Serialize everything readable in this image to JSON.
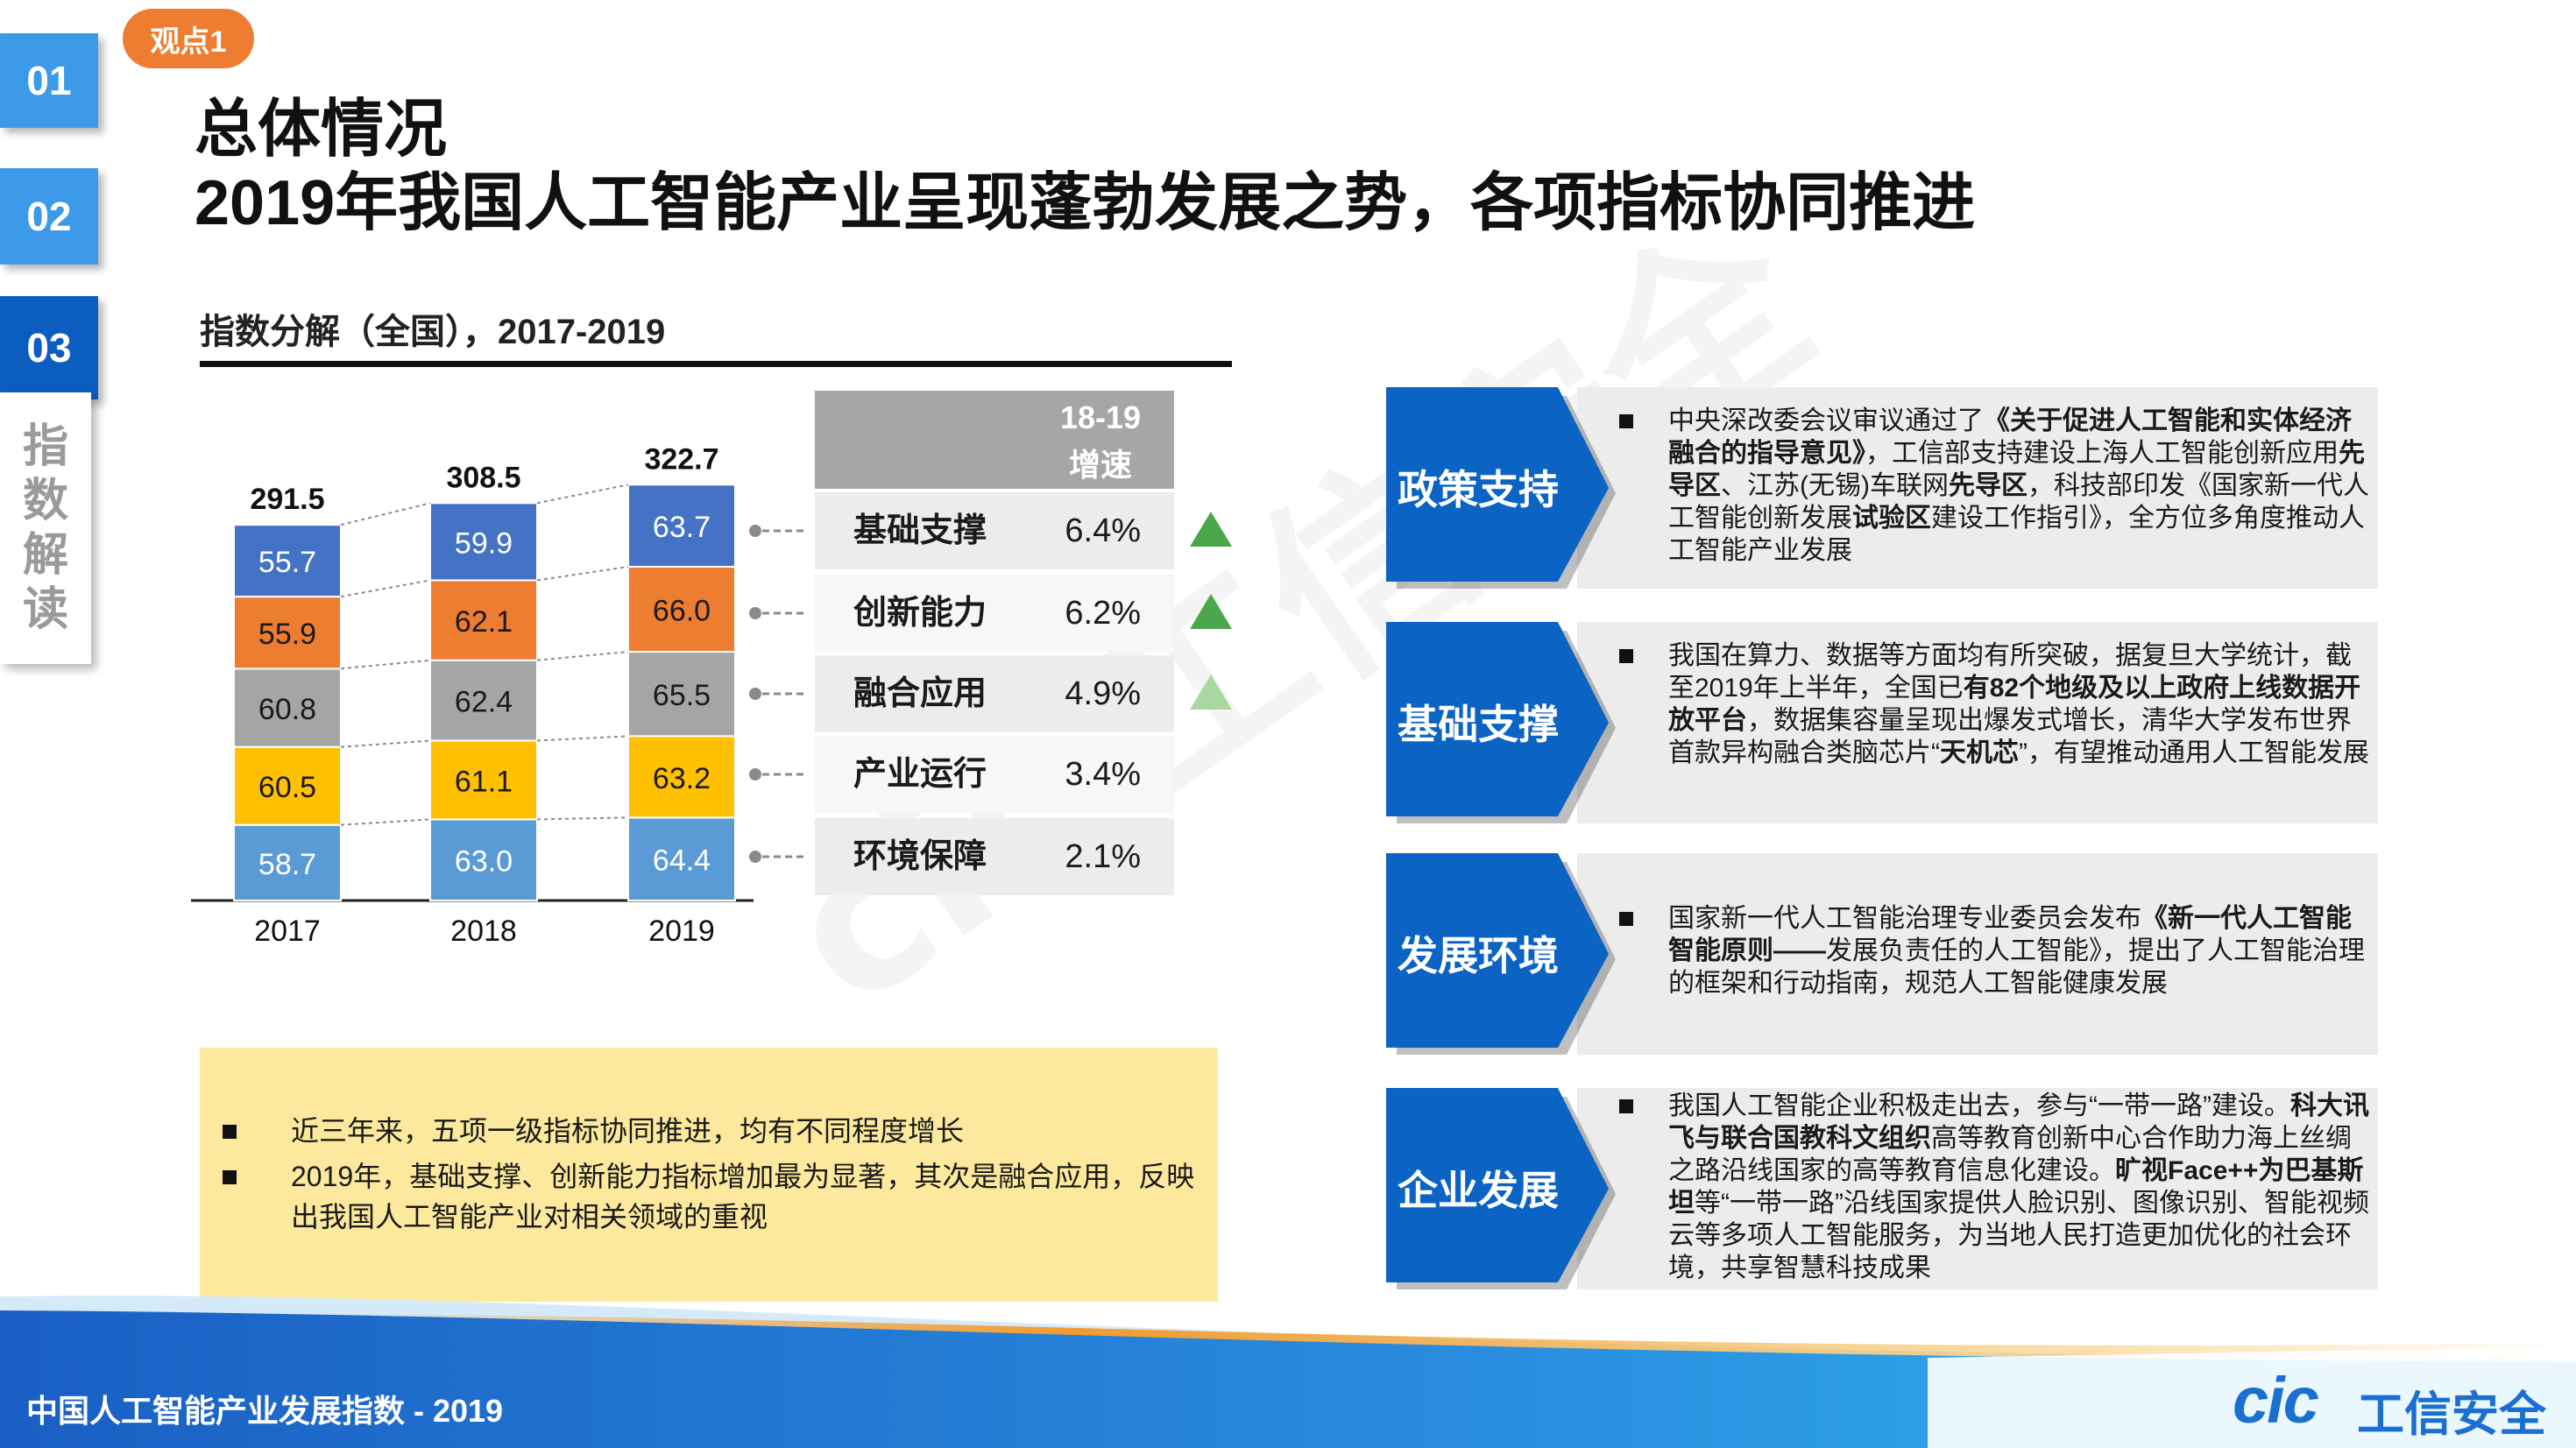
{
  "badge": "观点1",
  "nav": {
    "tabs": [
      "01",
      "02",
      "03"
    ],
    "active_index": 2,
    "vertical_label": [
      "指",
      "数",
      "解",
      "读"
    ]
  },
  "header": {
    "title_line1": "总体情况",
    "title_line2": "2019年我国人工智能产业呈现蓬勃发展之势，各项指标协同推进"
  },
  "chart_section": {
    "subtitle": "指数分解（全国），2017-2019"
  },
  "chart_data": {
    "type": "bar",
    "stacked": true,
    "categories": [
      "2017",
      "2018",
      "2019"
    ],
    "totals": [
      291.5,
      308.5,
      322.7
    ],
    "series": [
      {
        "name": "环境保障",
        "values": [
          58.7,
          63.0,
          64.4
        ],
        "color": "#5b9bd5"
      },
      {
        "name": "产业运行",
        "values": [
          60.5,
          61.1,
          63.2
        ],
        "color": "#ffc000"
      },
      {
        "name": "融合应用",
        "values": [
          60.8,
          62.4,
          65.5
        ],
        "color": "#a5a5a5"
      },
      {
        "name": "创新能力",
        "values": [
          55.9,
          62.1,
          66.0
        ],
        "color": "#ed7d31"
      },
      {
        "name": "基础支撑",
        "values": [
          55.7,
          59.9,
          63.7
        ],
        "color": "#4472c4"
      }
    ],
    "value_labels": [
      [
        "58.7",
        "60.5",
        "60.8",
        "55.9",
        "55.7"
      ],
      [
        "63.0",
        "61.1",
        "62.4",
        "62.1",
        "59.9"
      ],
      [
        "64.4",
        "63.2",
        "65.5",
        "66.0",
        "63.7"
      ]
    ],
    "total_labels": [
      "291.5",
      "308.5",
      "322.7"
    ],
    "ylim": [
      0,
      340
    ],
    "grid": false,
    "legend": "none"
  },
  "growth_table": {
    "header_line1": "18-19",
    "header_line2": "增速",
    "rows": [
      {
        "label": "基础支撑",
        "value": "6.4%",
        "arrow_color": "#4aa84a"
      },
      {
        "label": "创新能力",
        "value": "6.2%",
        "arrow_color": "#4aa84a"
      },
      {
        "label": "融合应用",
        "value": "4.9%",
        "arrow_color": "#a9d7a0"
      },
      {
        "label": "产业运行",
        "value": "3.4%",
        "arrow_color": ""
      },
      {
        "label": "环境保障",
        "value": "2.1%",
        "arrow_color": ""
      }
    ]
  },
  "note": {
    "items": [
      "近三年来，五项一级指标协同推进，均有不同程度增长",
      "2019年，基础支撑、创新能力指标增加最为显著，其次是融合应用，反映出我国人工智能产业对相关领域的重视"
    ]
  },
  "panels": [
    {
      "label": "政策支持",
      "html": "中央深改委会议审议通过了<b>《关于促进人工智能和实体经济融合的指导意见》</b>，工信部支持建设上海人工智能创新应用<b>先导区</b>、江苏(无锡)车联网<b>先导区</b>，科技部印发《国家新一代人工智能创新发展<b>试验区</b>建设工作指引》，全方位多角度推动人工智能产业发展"
    },
    {
      "label": "基础支撑",
      "html": "我国在算力、数据等方面均有所突破，据复旦大学统计，截至2019年上半年，全国已<b>有82个地级及以上政府上线数据开放平台</b>，数据集容量呈现出爆发式增长，清华大学发布世界首款异构融合类脑芯片“<b>天机芯</b>”，有望推动通用人工智能发展"
    },
    {
      "label": "发展环境",
      "html": "国家新一代人工智能治理专业委员会发布<b>《新一代人工智能智能原则——</b>发展负责任的人工智能》，提出了人工智能治理的框架和行动指南，规范人工智能健康发展"
    },
    {
      "label": "企业发展",
      "html": "我国人工智能企业积极走出去，参与“一带一路”建设。<b>科大讯飞与联合国教科文组织</b>高等教育创新中心合作助力海上丝绸之路沿线国家的高等教育信息化建设。<b>旷视Face++为巴基斯坦</b>等“一带一路”沿线国家提供人脸识别、图像识别、智能视频云等多项人工智能服务，为当地人民打造更加优化的社会环境，共享智慧科技成果"
    }
  ],
  "footer": {
    "title": "中国人工智能产业发展指数 - 2019",
    "logo_text": "cic",
    "logo_cn": "工信安全"
  },
  "watermark": "cic 工信安全"
}
